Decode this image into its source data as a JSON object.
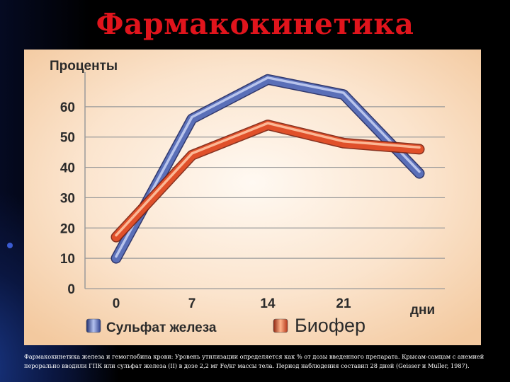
{
  "slide": {
    "title": "Фармакокинетика",
    "caption": "Фармакокинетика железа и гемоглобина крови: Уровень утилизации определяется как % от дозы введенного препарата. Крысам-самцам с анемией перорально вводили ГПК или сульфат железа (II) в дозе 2,2 мг Fe/кг массы тела. Период наблюдения составил 28 дней (Geisser и Muller, 1987)."
  },
  "colors": {
    "title": "#e0141c",
    "series_blue": "#5a6fb8",
    "series_orange": "#e0502a",
    "panel_background": "#fbe4cd"
  },
  "chart_data": {
    "type": "line",
    "title": "",
    "ylabel": "Проценты",
    "xlabel": "дни",
    "x_ticks": [
      0,
      7,
      14,
      21
    ],
    "y_ticks": [
      0,
      10,
      20,
      30,
      40,
      50,
      60
    ],
    "xlim": [
      0,
      28
    ],
    "ylim": [
      0,
      70
    ],
    "grid": true,
    "legend_position": "bottom",
    "series": [
      {
        "name": "Сульфат железа",
        "color": "#5a6fb8",
        "x": [
          0,
          7,
          14,
          21,
          28
        ],
        "y": [
          10,
          56,
          69,
          64,
          38
        ]
      },
      {
        "name": "Биофер",
        "color": "#e0502a",
        "x": [
          0,
          7,
          14,
          21,
          28
        ],
        "y": [
          17,
          44,
          54,
          48,
          46
        ]
      }
    ]
  }
}
